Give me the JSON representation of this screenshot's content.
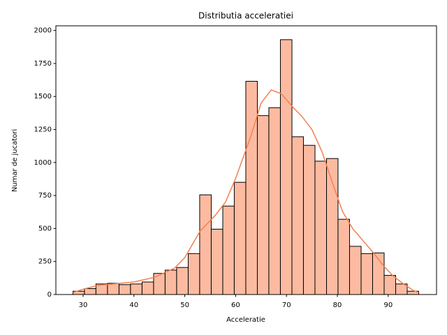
{
  "chart_data": {
    "type": "histogram",
    "title": "Distributia acceleratiei",
    "x_label": "Acceleratie",
    "y_label": "Numar de jucatori",
    "bins": [
      28,
      30.27,
      32.53,
      34.8,
      37.07,
      39.33,
      41.6,
      43.87,
      46.13,
      48.4,
      50.67,
      52.93,
      55.2,
      57.47,
      59.73,
      62,
      64.27,
      66.53,
      68.8,
      71.07,
      73.33,
      75.6,
      77.87,
      80.13,
      82.4,
      84.67,
      86.93,
      89.2,
      91.47,
      93.73,
      96
    ],
    "counts": [
      25,
      45,
      80,
      85,
      75,
      80,
      95,
      160,
      185,
      205,
      310,
      755,
      495,
      670,
      850,
      1615,
      1355,
      1415,
      1930,
      1195,
      1130,
      1010,
      1030,
      570,
      365,
      310,
      315,
      145,
      80,
      25
    ],
    "color": "#fcbba1",
    "edge_color": "#000000",
    "kde": {
      "color": "#f4804f",
      "x": [
        28,
        30,
        33,
        36,
        40,
        44,
        48,
        50,
        53,
        56,
        58,
        60,
        63,
        65,
        67,
        69,
        71,
        73,
        75,
        77,
        79,
        81,
        83,
        85,
        87,
        89,
        91,
        93,
        95,
        96
      ],
      "y": [
        15,
        40,
        70,
        80,
        95,
        130,
        200,
        280,
        480,
        600,
        700,
        880,
        1200,
        1450,
        1550,
        1520,
        1430,
        1350,
        1250,
        1080,
        850,
        630,
        500,
        410,
        320,
        220,
        140,
        80,
        30,
        15
      ]
    },
    "xlim": [
      24.65,
      99.5
    ],
    "ylim": [
      0,
      2035
    ],
    "xticks": [
      30,
      40,
      50,
      60,
      70,
      80,
      90
    ],
    "yticks": [
      0,
      250,
      500,
      750,
      1000,
      1250,
      1500,
      1750,
      2000
    ]
  }
}
